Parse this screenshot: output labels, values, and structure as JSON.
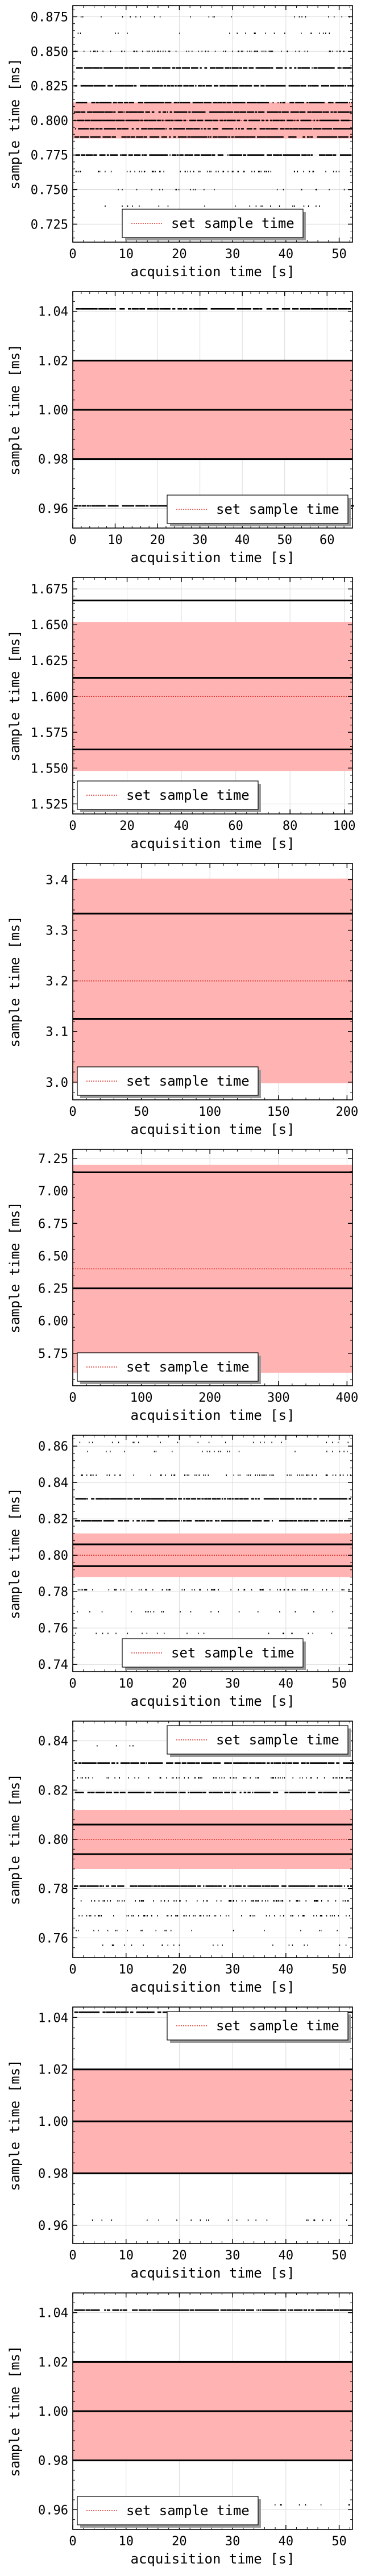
{
  "legend_label": "set sample time",
  "colors": {
    "band": "#ffb3b3",
    "setline": "#e0302a",
    "samples": "#000000",
    "grid": "#dcdcdc"
  },
  "chart_data": [
    {
      "type": "scatter",
      "xlabel": "acquisition time [s]",
      "ylabel": "sample time [ms]",
      "xlim": [
        0,
        52.5
      ],
      "ylim": [
        0.712,
        0.883
      ],
      "xticks": [
        0,
        10,
        20,
        30,
        40,
        50
      ],
      "yticks": [
        0.725,
        0.75,
        0.775,
        0.8,
        0.825,
        0.85,
        0.875
      ],
      "ytick_labels": [
        "0.725",
        "0.750",
        "0.775",
        "0.800",
        "0.825",
        "0.850",
        "0.875"
      ],
      "xtick_labels": [
        "0",
        "10",
        "20",
        "30",
        "40",
        "50"
      ],
      "set_sample_time": 0.8,
      "band": [
        0.787,
        0.813
      ],
      "legend_loc": "lower center",
      "levels": [
        {
          "y": 0.738,
          "density": "sparse"
        },
        {
          "y": 0.75,
          "density": "sparse"
        },
        {
          "y": 0.763,
          "density": "medium"
        },
        {
          "y": 0.775,
          "density": "dense"
        },
        {
          "y": 0.788,
          "density": "dense"
        },
        {
          "y": 0.794,
          "density": "dense"
        },
        {
          "y": 0.8,
          "density": "dense"
        },
        {
          "y": 0.806,
          "density": "dense"
        },
        {
          "y": 0.813,
          "density": "dense"
        },
        {
          "y": 0.825,
          "density": "dense"
        },
        {
          "y": 0.838,
          "density": "dense"
        },
        {
          "y": 0.85,
          "density": "medium"
        },
        {
          "y": 0.863,
          "density": "sparse"
        },
        {
          "y": 0.875,
          "density": "sparse"
        }
      ]
    },
    {
      "type": "scatter",
      "xlabel": "acquisition time [s]",
      "ylabel": "sample time [ms]",
      "xlim": [
        0,
        66
      ],
      "ylim": [
        0.952,
        1.048
      ],
      "xticks": [
        0,
        10,
        20,
        30,
        40,
        50,
        60
      ],
      "yticks": [
        0.96,
        0.98,
        1.0,
        1.02,
        1.04
      ],
      "ytick_labels": [
        "0.96",
        "0.98",
        "1.00",
        "1.02",
        "1.04"
      ],
      "xtick_labels": [
        "0",
        "10",
        "20",
        "30",
        "40",
        "50",
        "60"
      ],
      "set_sample_time": 1.0,
      "band": [
        0.98,
        1.02
      ],
      "legend_loc": "lower right",
      "levels": [
        {
          "y": 0.961,
          "density": "dense"
        },
        {
          "y": 0.98,
          "density": "solid"
        },
        {
          "y": 1.0,
          "density": "solid"
        },
        {
          "y": 1.02,
          "density": "solid"
        },
        {
          "y": 1.041,
          "density": "dense"
        }
      ]
    },
    {
      "type": "scatter",
      "xlabel": "acquisition time [s]",
      "ylabel": "sample time [ms]",
      "xlim": [
        0,
        103
      ],
      "ylim": [
        1.518,
        1.683
      ],
      "xticks": [
        0,
        20,
        40,
        60,
        80,
        100
      ],
      "yticks": [
        1.525,
        1.55,
        1.575,
        1.6,
        1.625,
        1.65,
        1.675
      ],
      "ytick_labels": [
        "1.525",
        "1.550",
        "1.575",
        "1.600",
        "1.625",
        "1.650",
        "1.675"
      ],
      "xtick_labels": [
        "0",
        "20",
        "40",
        "60",
        "80",
        "100"
      ],
      "set_sample_time": 1.6,
      "band": [
        1.548,
        1.652
      ],
      "legend_loc": "lower left",
      "levels": [
        {
          "y": 1.563,
          "density": "solid"
        },
        {
          "y": 1.613,
          "density": "solid"
        },
        {
          "y": 1.667,
          "density": "solid"
        }
      ]
    },
    {
      "type": "scatter",
      "xlabel": "acquisition time [s]",
      "ylabel": "sample time [ms]",
      "xlim": [
        0,
        204
      ],
      "ylim": [
        2.965,
        3.432
      ],
      "xticks": [
        0,
        50,
        100,
        150,
        200
      ],
      "yticks": [
        3.0,
        3.1,
        3.2,
        3.3,
        3.4
      ],
      "ytick_labels": [
        "3.0",
        "3.1",
        "3.2",
        "3.3",
        "3.4"
      ],
      "xtick_labels": [
        "0",
        "50",
        "100",
        "150",
        "200"
      ],
      "set_sample_time": 3.2,
      "band": [
        2.998,
        3.402
      ],
      "legend_loc": "lower left",
      "levels": [
        {
          "y": 3.125,
          "density": "solid"
        },
        {
          "y": 3.333,
          "density": "solid"
        }
      ]
    },
    {
      "type": "scatter",
      "xlabel": "acquisition time [s]",
      "ylabel": "sample time [ms]",
      "xlim": [
        0,
        408
      ],
      "ylim": [
        5.5,
        7.32
      ],
      "xticks": [
        0,
        100,
        200,
        300,
        400
      ],
      "yticks": [
        5.75,
        6.25,
        6.75,
        7.25
      ],
      "ytick_labels": [
        "5.75",
        "6.25",
        "6.75",
        "7.25"
      ],
      "minor_yticks": [
        6.0,
        6.5,
        7.0
      ],
      "minor_ytick_labels": [
        "6.00",
        "6.50",
        "7.00"
      ],
      "xtick_labels": [
        "0",
        "100",
        "200",
        "300",
        "400"
      ],
      "set_sample_time": 6.4,
      "band": [
        5.6,
        7.2
      ],
      "legend_loc": "lower left",
      "levels": [
        {
          "y": 6.25,
          "density": "solid"
        },
        {
          "y": 7.143,
          "density": "solid"
        }
      ]
    },
    {
      "type": "scatter",
      "xlabel": "acquisition time [s]",
      "ylabel": "sample time [ms]",
      "xlim": [
        0,
        52.5
      ],
      "ylim": [
        0.736,
        0.866
      ],
      "xticks": [
        0,
        10,
        20,
        30,
        40,
        50
      ],
      "yticks": [
        0.74,
        0.76,
        0.78,
        0.8,
        0.82,
        0.84,
        0.86
      ],
      "ytick_labels": [
        "0.74",
        "0.76",
        "0.78",
        "0.80",
        "0.82",
        "0.84",
        "0.86"
      ],
      "xtick_labels": [
        "0",
        "10",
        "20",
        "30",
        "40",
        "50"
      ],
      "set_sample_time": 0.8,
      "band": [
        0.788,
        0.812
      ],
      "legend_loc": "lower center",
      "levels": [
        {
          "y": 0.757,
          "density": "sparse"
        },
        {
          "y": 0.769,
          "density": "sparse"
        },
        {
          "y": 0.781,
          "density": "medium"
        },
        {
          "y": 0.794,
          "density": "solid"
        },
        {
          "y": 0.806,
          "density": "solid"
        },
        {
          "y": 0.819,
          "density": "dense"
        },
        {
          "y": 0.831,
          "density": "dense"
        },
        {
          "y": 0.844,
          "density": "medium"
        },
        {
          "y": 0.857,
          "density": "sparse"
        },
        {
          "y": 0.862,
          "density": "sparse"
        }
      ]
    },
    {
      "type": "scatter",
      "xlabel": "acquisition time [s]",
      "ylabel": "sample time [ms]",
      "xlim": [
        0,
        52.5
      ],
      "ylim": [
        0.752,
        0.848
      ],
      "xticks": [
        0,
        10,
        20,
        30,
        40,
        50
      ],
      "yticks": [
        0.76,
        0.78,
        0.8,
        0.82,
        0.84
      ],
      "ytick_labels": [
        "0.76",
        "0.78",
        "0.80",
        "0.82",
        "0.84"
      ],
      "xtick_labels": [
        "0",
        "10",
        "20",
        "30",
        "40",
        "50"
      ],
      "set_sample_time": 0.8,
      "band": [
        0.788,
        0.812
      ],
      "legend_loc": "upper right",
      "levels": [
        {
          "y": 0.757,
          "density": "sparse"
        },
        {
          "y": 0.763,
          "density": "sparse"
        },
        {
          "y": 0.769,
          "density": "medium"
        },
        {
          "y": 0.775,
          "density": "medium"
        },
        {
          "y": 0.781,
          "density": "dense"
        },
        {
          "y": 0.794,
          "density": "solid"
        },
        {
          "y": 0.806,
          "density": "solid"
        },
        {
          "y": 0.819,
          "density": "dense"
        },
        {
          "y": 0.825,
          "density": "medium"
        },
        {
          "y": 0.831,
          "density": "dense"
        },
        {
          "y": 0.838,
          "density": "sparse"
        }
      ]
    },
    {
      "type": "scatter",
      "xlabel": "acquisition time [s]",
      "ylabel": "sample time [ms]",
      "xlim": [
        0,
        52.5
      ],
      "ylim": [
        0.953,
        1.044
      ],
      "xticks": [
        0,
        10,
        20,
        30,
        40,
        50
      ],
      "yticks": [
        0.96,
        0.98,
        1.0,
        1.02,
        1.04
      ],
      "ytick_labels": [
        "0.96",
        "0.98",
        "1.00",
        "1.02",
        "1.04"
      ],
      "xtick_labels": [
        "0",
        "10",
        "20",
        "30",
        "40",
        "50"
      ],
      "set_sample_time": 1.0,
      "band": [
        0.98,
        1.02
      ],
      "legend_loc": "upper right",
      "levels": [
        {
          "y": 0.962,
          "density": "sparse"
        },
        {
          "y": 0.98,
          "density": "solid"
        },
        {
          "y": 1.0,
          "density": "solid"
        },
        {
          "y": 1.02,
          "density": "solid"
        },
        {
          "y": 1.042,
          "density": "dense"
        }
      ]
    },
    {
      "type": "scatter",
      "xlabel": "acquisition time [s]",
      "ylabel": "sample time [ms]",
      "xlim": [
        0,
        52.5
      ],
      "ylim": [
        0.952,
        1.048
      ],
      "xticks": [
        0,
        10,
        20,
        30,
        40,
        50
      ],
      "yticks": [
        0.96,
        0.98,
        1.0,
        1.02,
        1.04
      ],
      "ytick_labels": [
        "0.96",
        "0.98",
        "1.00",
        "1.02",
        "1.04"
      ],
      "xtick_labels": [
        "0",
        "10",
        "20",
        "30",
        "40",
        "50"
      ],
      "set_sample_time": 1.0,
      "band": [
        0.98,
        1.02
      ],
      "legend_loc": "lower left",
      "levels": [
        {
          "y": 0.962,
          "density": "sparse"
        },
        {
          "y": 0.98,
          "density": "solid"
        },
        {
          "y": 1.0,
          "density": "solid"
        },
        {
          "y": 1.02,
          "density": "solid"
        },
        {
          "y": 1.041,
          "density": "dense"
        }
      ]
    }
  ]
}
